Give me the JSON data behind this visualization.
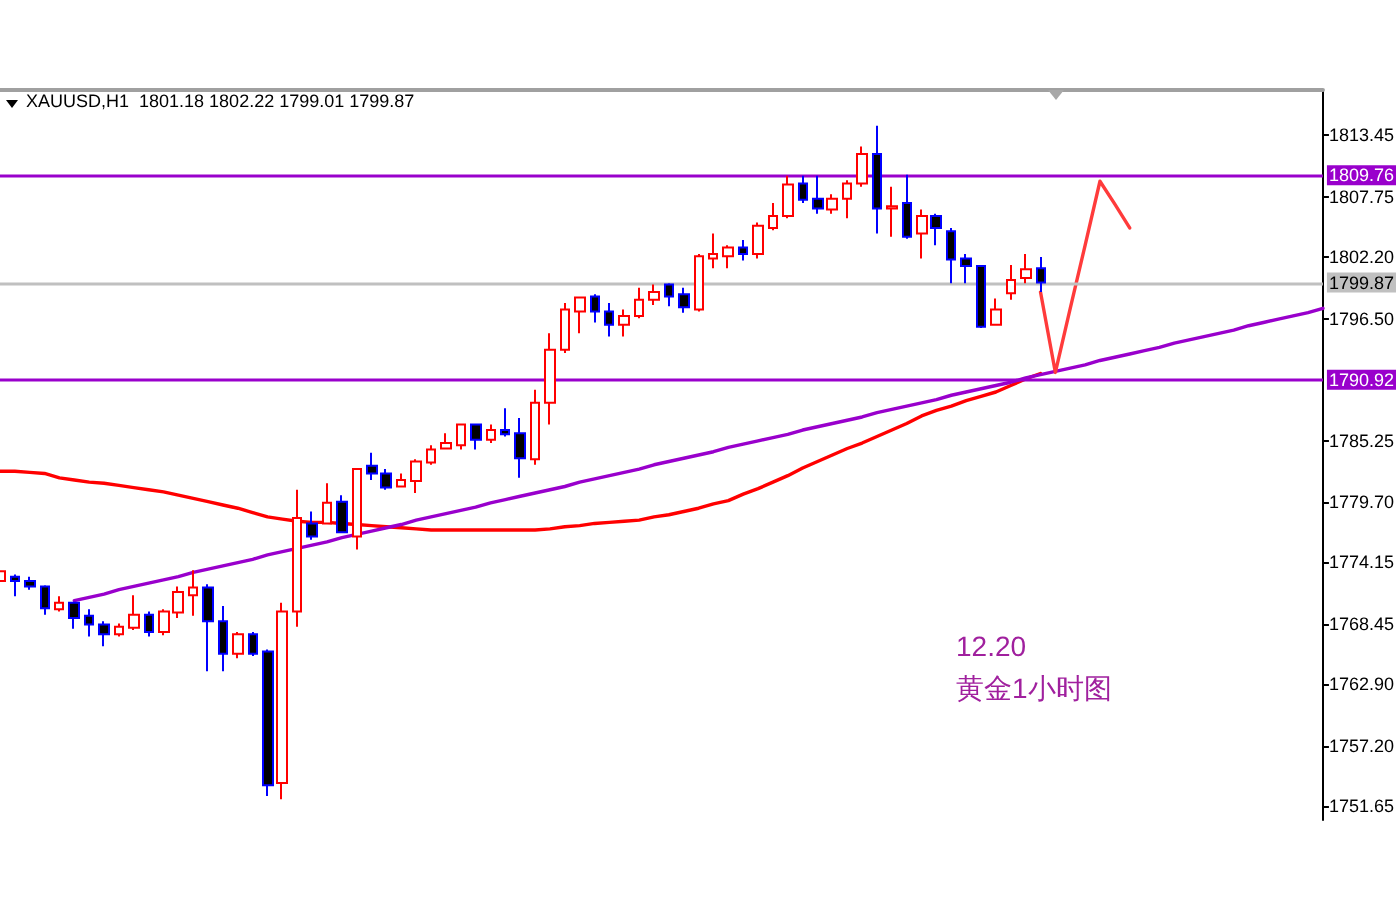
{
  "chart_data": {
    "type": "candlestick",
    "title": "XAUUSD,H1  1801.18 1802.22 1799.01 1799.87",
    "categories": [
      null,
      null,
      null,
      null,
      null,
      null,
      null,
      null,
      null,
      null,
      null,
      null,
      null,
      null,
      null,
      null,
      null,
      null,
      null,
      null,
      null,
      null,
      null,
      null,
      null,
      null,
      null,
      null,
      null,
      null,
      null,
      null,
      null,
      null,
      null,
      null,
      null,
      null,
      null,
      null,
      null,
      null,
      null,
      null,
      null,
      null,
      null,
      null,
      null,
      null,
      null,
      null,
      null,
      null,
      null,
      null,
      null,
      null,
      null,
      null,
      null,
      null,
      null,
      null,
      null,
      null,
      null,
      null,
      null,
      null,
      null,
      null,
      null,
      null,
      null,
      null,
      null,
      null,
      null,
      null,
      null,
      null,
      null,
      null,
      null,
      null,
      null,
      null,
      null,
      null
    ],
    "ohlc": [
      [
        1772.4,
        1773.5,
        1772.2,
        1773.3
      ],
      [
        1772.8,
        1773.0,
        1771.0,
        1772.4
      ],
      [
        1772.4,
        1772.8,
        1771.6,
        1771.9
      ],
      [
        1771.9,
        1772.0,
        1769.3,
        1769.9
      ],
      [
        1769.8,
        1771.0,
        1769.6,
        1770.4
      ],
      [
        1770.4,
        1770.5,
        1768.0,
        1769.0
      ],
      [
        1769.2,
        1769.8,
        1767.3,
        1768.4
      ],
      [
        1768.4,
        1768.7,
        1766.4,
        1767.5
      ],
      [
        1767.5,
        1768.5,
        1767.3,
        1768.2
      ],
      [
        1768.1,
        1771.1,
        1767.9,
        1769.3
      ],
      [
        1769.3,
        1769.6,
        1767.3,
        1767.7
      ],
      [
        1767.7,
        1769.8,
        1767.4,
        1769.6
      ],
      [
        1769.5,
        1771.9,
        1769.0,
        1771.4
      ],
      [
        1771.1,
        1773.4,
        1769.2,
        1771.8
      ],
      [
        1771.8,
        1772.1,
        1764.1,
        1768.7
      ],
      [
        1768.7,
        1770.1,
        1764.1,
        1765.7
      ],
      [
        1765.7,
        1767.7,
        1765.3,
        1767.5
      ],
      [
        1767.5,
        1767.7,
        1765.5,
        1765.7
      ],
      [
        1765.9,
        1766.1,
        1752.6,
        1753.6
      ],
      [
        1753.8,
        1770.4,
        1752.3,
        1769.6
      ],
      [
        1769.6,
        1780.8,
        1768.2,
        1778.2
      ],
      [
        1777.7,
        1778.8,
        1776.2,
        1776.5
      ],
      [
        1777.7,
        1781.4,
        1777.6,
        1779.6
      ],
      [
        1779.7,
        1780.3,
        1776.8,
        1776.9
      ],
      [
        1776.5,
        1782.7,
        1775.3,
        1782.7
      ],
      [
        1783.0,
        1784.2,
        1781.7,
        1782.3
      ],
      [
        1782.3,
        1782.7,
        1780.8,
        1781.0
      ],
      [
        1781.1,
        1782.3,
        1781.0,
        1781.7
      ],
      [
        1781.6,
        1783.6,
        1780.5,
        1783.4
      ],
      [
        1783.3,
        1784.9,
        1783.1,
        1784.5
      ],
      [
        1784.6,
        1786.0,
        1784.5,
        1785.1
      ],
      [
        1784.9,
        1786.9,
        1784.5,
        1786.8
      ],
      [
        1786.8,
        1786.9,
        1784.5,
        1785.4
      ],
      [
        1785.4,
        1786.8,
        1785.1,
        1786.3
      ],
      [
        1786.3,
        1788.3,
        1785.7,
        1785.9
      ],
      [
        1786.0,
        1787.4,
        1781.9,
        1783.7
      ],
      [
        1783.6,
        1790.0,
        1783.1,
        1788.8
      ],
      [
        1788.8,
        1795.2,
        1786.8,
        1793.7
      ],
      [
        1793.7,
        1798.0,
        1793.4,
        1797.4
      ],
      [
        1797.2,
        1798.6,
        1795.2,
        1798.5
      ],
      [
        1798.6,
        1798.8,
        1796.2,
        1797.2
      ],
      [
        1797.2,
        1798.0,
        1794.9,
        1796.0
      ],
      [
        1796.0,
        1797.4,
        1794.9,
        1796.8
      ],
      [
        1796.8,
        1799.4,
        1796.6,
        1798.3
      ],
      [
        1798.3,
        1799.7,
        1797.8,
        1799.0
      ],
      [
        1799.7,
        1799.8,
        1797.7,
        1798.6
      ],
      [
        1798.8,
        1799.4,
        1797.1,
        1797.6
      ],
      [
        1797.4,
        1802.5,
        1797.2,
        1802.3
      ],
      [
        1802.1,
        1804.4,
        1801.2,
        1802.5
      ],
      [
        1802.3,
        1803.3,
        1801.2,
        1803.1
      ],
      [
        1803.1,
        1803.8,
        1801.9,
        1802.5
      ],
      [
        1802.5,
        1805.4,
        1802.1,
        1805.1
      ],
      [
        1804.9,
        1807.2,
        1804.7,
        1806.0
      ],
      [
        1806.0,
        1809.7,
        1805.8,
        1808.9
      ],
      [
        1809.0,
        1809.7,
        1807.2,
        1807.5
      ],
      [
        1807.6,
        1809.7,
        1806.2,
        1806.7
      ],
      [
        1806.6,
        1808.0,
        1806.2,
        1807.6
      ],
      [
        1807.6,
        1809.3,
        1805.8,
        1809.0
      ],
      [
        1809.0,
        1812.4,
        1808.7,
        1811.7
      ],
      [
        1811.7,
        1814.3,
        1804.4,
        1806.7
      ],
      [
        1806.7,
        1808.7,
        1804.1,
        1806.9
      ],
      [
        1807.2,
        1809.8,
        1803.9,
        1804.1
      ],
      [
        1804.4,
        1806.6,
        1802.1,
        1806.0
      ],
      [
        1806.0,
        1806.2,
        1803.3,
        1804.9
      ],
      [
        1804.6,
        1804.9,
        1799.8,
        1802.0
      ],
      [
        1802.1,
        1802.5,
        1799.8,
        1801.4
      ],
      [
        1801.4,
        1801.5,
        1795.7,
        1795.8
      ],
      [
        1796.0,
        1798.4,
        1796.0,
        1797.4
      ],
      [
        1798.9,
        1801.5,
        1798.3,
        1800.1
      ],
      [
        1800.3,
        1802.5,
        1799.8,
        1801.1
      ],
      [
        1801.18,
        1802.22,
        1799.01,
        1799.87
      ],
      null,
      null,
      null,
      null,
      null,
      null,
      null,
      null,
      null,
      null,
      null,
      null,
      null,
      null,
      null,
      null,
      null,
      null,
      null
    ],
    "series": [
      {
        "type": "line",
        "color": "#ff0000",
        "values": [
          1782.5,
          1782.5,
          1782.4,
          1782.3,
          1781.9,
          1781.7,
          1781.5,
          1781.4,
          1781.2,
          1781.0,
          1780.8,
          1780.6,
          1780.3,
          1780.0,
          1779.7,
          1779.4,
          1779.1,
          1778.7,
          1778.3,
          1778.1,
          1777.9,
          1777.8,
          1777.8,
          1777.7,
          1777.6,
          1777.5,
          1777.4,
          1777.3,
          1777.2,
          1777.1,
          1777.1,
          1777.1,
          1777.1,
          1777.1,
          1777.1,
          1777.1,
          1777.1,
          1777.2,
          1777.4,
          1777.5,
          1777.7,
          1777.8,
          1777.9,
          1778.0,
          1778.3,
          1778.5,
          1778.8,
          1779.1,
          1779.5,
          1779.8,
          1780.4,
          1780.9,
          1781.5,
          1782.1,
          1782.8,
          1783.4,
          1784.0,
          1784.6,
          1785.1,
          1785.7,
          1786.3,
          1786.9,
          1787.6,
          1788.1,
          1788.5,
          1789.0,
          1789.4,
          1789.8,
          1790.4,
          1791.0,
          1791.5,
          null,
          null,
          null,
          null,
          null,
          null,
          null,
          null,
          null,
          null,
          null,
          null,
          null,
          null,
          null,
          null,
          null,
          null,
          null
        ]
      },
      {
        "type": "line",
        "color": "#9900cc",
        "values": [
          null,
          null,
          null,
          null,
          null,
          1770.6,
          1770.9,
          1771.2,
          1771.6,
          1771.9,
          1772.2,
          1772.5,
          1772.8,
          1773.2,
          1773.5,
          1773.8,
          1774.1,
          1774.4,
          1774.8,
          1775.1,
          1775.4,
          1775.7,
          1776.0,
          1776.4,
          1776.7,
          1777.0,
          1777.3,
          1777.6,
          1778.0,
          1778.3,
          1778.6,
          1778.9,
          1779.2,
          1779.6,
          1779.9,
          1780.2,
          1780.5,
          1780.8,
          1781.1,
          1781.5,
          1781.8,
          1782.1,
          1782.4,
          1782.7,
          1783.1,
          1783.4,
          1783.7,
          1784.0,
          1784.3,
          1784.7,
          1785.0,
          1785.3,
          1785.6,
          1785.9,
          1786.3,
          1786.6,
          1786.9,
          1787.2,
          1787.5,
          1787.9,
          1788.2,
          1788.5,
          1788.8,
          1789.1,
          1789.5,
          1789.8,
          1790.1,
          1790.4,
          1790.7,
          1791.1,
          1791.4,
          1791.7,
          1792.0,
          1792.3,
          1792.7,
          1793.0,
          1793.3,
          1793.6,
          1793.9,
          1794.3,
          1794.6,
          1794.9,
          1795.2,
          1795.5,
          1795.9,
          1796.2,
          1796.5,
          1796.8,
          1797.1,
          1797.5
        ]
      },
      {
        "type": "line",
        "color": "#ff3b3b",
        "values": [
          null,
          null,
          null,
          null,
          null,
          null,
          null,
          null,
          null,
          null,
          null,
          null,
          null,
          null,
          null,
          null,
          null,
          null,
          null,
          null,
          null,
          null,
          null,
          null,
          null,
          null,
          null,
          null,
          null,
          null,
          null,
          null,
          null,
          null,
          null,
          null,
          null,
          null,
          null,
          null,
          null,
          null,
          null,
          null,
          null,
          null,
          null,
          null,
          null,
          null,
          null,
          null,
          null,
          null,
          null,
          null,
          null,
          null,
          null,
          null,
          null,
          null,
          null,
          null,
          null,
          null,
          null,
          null,
          null,
          null,
          1799.0,
          1791.6,
          1797.5,
          1803.3,
          1809.2,
          1807.1,
          1804.9,
          null,
          null,
          null,
          null,
          null,
          null,
          null,
          null,
          null,
          null,
          null,
          null,
          null
        ]
      }
    ],
    "ylim": [
      1750.4,
      1817.6
    ],
    "yticks": [
      1813.45,
      1807.75,
      {
        "value": 1802.2,
        "label": "1802.20"
      },
      {
        "value": 1796.5,
        "label": "1796.50"
      },
      1785.25,
      {
        "value": 1779.7,
        "label": "1779.70"
      },
      1774.15,
      1768.45,
      {
        "value": 1762.9,
        "label": "1762.90"
      },
      {
        "value": 1757.2,
        "label": "1757.20"
      },
      1751.65
    ],
    "ref_lines": [
      {
        "axis": "y",
        "value": 1809.76,
        "label": "1809.76",
        "color": "#9900cc"
      },
      {
        "axis": "y",
        "value": 1799.87,
        "label": "1799.87",
        "color": "#c0c0c0"
      },
      {
        "axis": "y",
        "value": 1790.92,
        "label": "1790.92",
        "color": "#9900cc"
      }
    ],
    "annotations": [
      "12.20",
      "黄金1小时图"
    ],
    "tick_labels": "y"
  }
}
